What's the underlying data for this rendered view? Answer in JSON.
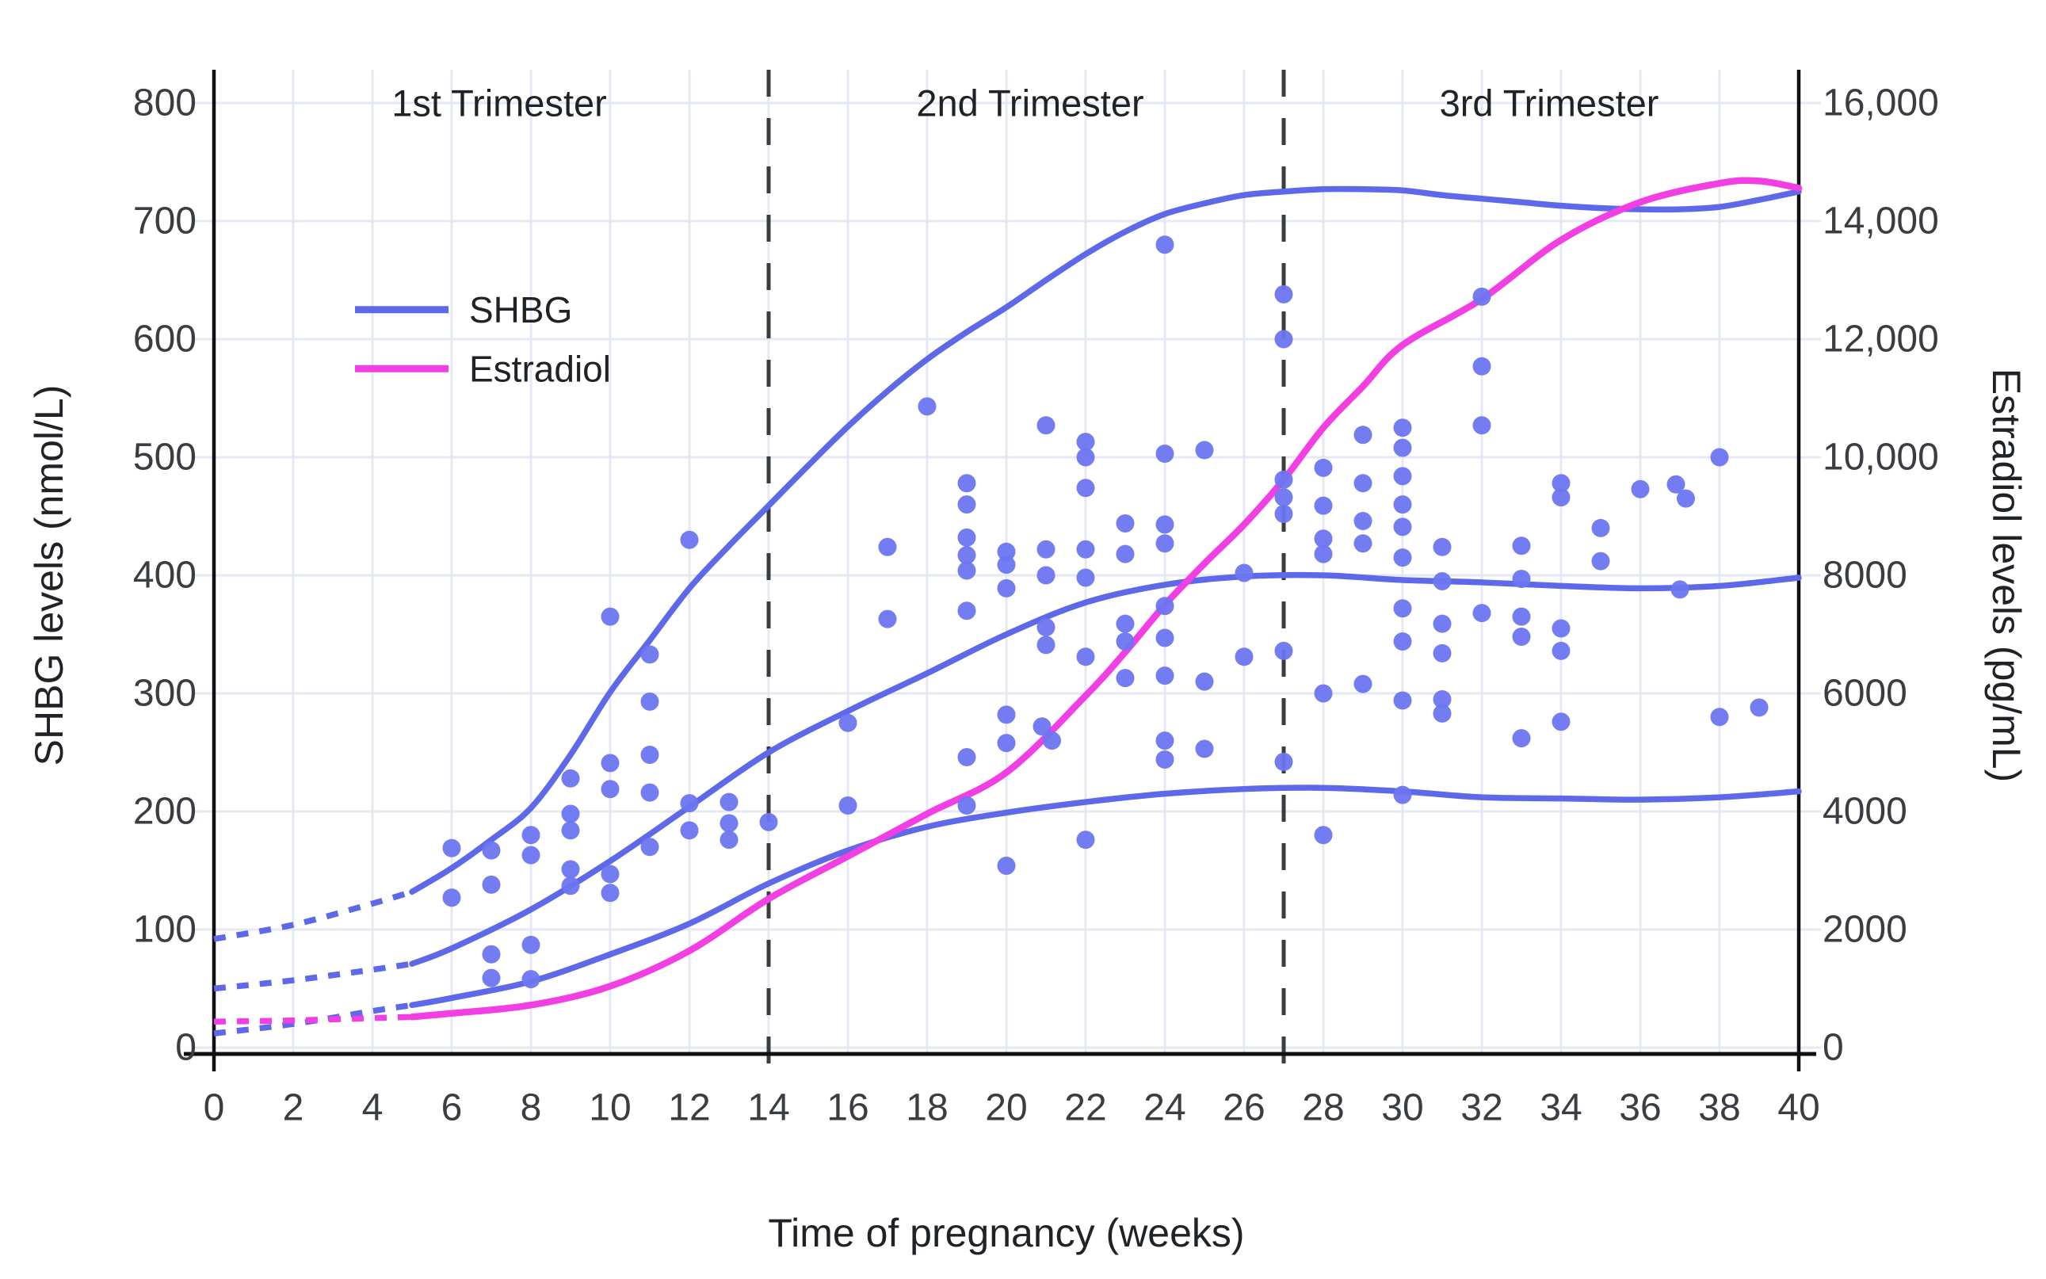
{
  "chart_data": {
    "type": "scatter",
    "title": "",
    "x_axis": {
      "label": "Time of pregnancy (weeks)",
      "range": [
        0,
        40
      ],
      "tick_step": 2,
      "tick_labels": [
        "0",
        "2",
        "4",
        "6",
        "8",
        "10",
        "12",
        "14",
        "16",
        "18",
        "20",
        "22",
        "24",
        "26",
        "28",
        "30",
        "32",
        "34",
        "36",
        "38",
        "40"
      ]
    },
    "y_left_axis": {
      "label": "SHBG levels (nmol/L)",
      "range": [
        0,
        800
      ],
      "tick_step": 100,
      "tick_labels": [
        "0",
        "100",
        "200",
        "300",
        "400",
        "500",
        "600",
        "700",
        "800"
      ]
    },
    "y_right_axis": {
      "label": "Estradiol levels (pg/mL)",
      "range": [
        0,
        16000
      ],
      "per_left_unit": 20,
      "tick_labels": [
        "0",
        "2000",
        "4000",
        "6000",
        "8000",
        "10,000",
        "12,000",
        "14,000",
        "16,000"
      ]
    },
    "trimesters": {
      "boundary_weeks": [
        14,
        27
      ],
      "labels": [
        {
          "text": "1st Trimester",
          "week": 7.2
        },
        {
          "text": "2nd Trimester",
          "week": 20.6
        },
        {
          "text": "3rd Trimester",
          "week": 33.7
        }
      ],
      "label_value": 800
    },
    "legend": [
      {
        "name": "SHBG",
        "color": "#5D69E9"
      },
      {
        "name": "Estradiol",
        "color": "#F13FE4"
      }
    ],
    "series": [
      {
        "name": "shbg-95th-percentile",
        "color": "#5D69E9",
        "dotted": [
          [
            0,
            92
          ],
          [
            2,
            104
          ],
          [
            4,
            122
          ],
          [
            5,
            132
          ]
        ],
        "solid": [
          [
            5,
            132
          ],
          [
            6,
            152
          ],
          [
            7,
            176
          ],
          [
            8,
            203
          ],
          [
            9,
            248
          ],
          [
            10,
            301
          ],
          [
            11,
            345
          ],
          [
            12,
            389
          ],
          [
            13,
            425
          ],
          [
            14,
            459
          ],
          [
            15,
            493
          ],
          [
            16,
            526
          ],
          [
            17,
            556
          ],
          [
            18,
            583
          ],
          [
            19,
            606
          ],
          [
            20,
            627
          ],
          [
            21,
            650
          ],
          [
            22,
            672
          ],
          [
            23,
            691
          ],
          [
            24,
            706
          ],
          [
            25,
            715
          ],
          [
            26,
            722
          ],
          [
            27,
            725
          ],
          [
            28,
            727
          ],
          [
            29,
            727
          ],
          [
            30,
            726
          ],
          [
            31,
            722
          ],
          [
            32,
            719
          ],
          [
            33,
            716
          ],
          [
            34,
            713
          ],
          [
            35,
            711
          ],
          [
            36,
            710
          ],
          [
            37,
            710
          ],
          [
            38,
            712
          ],
          [
            39,
            718
          ],
          [
            40,
            725
          ]
        ]
      },
      {
        "name": "shbg-median",
        "color": "#5D69E9",
        "dotted": [
          [
            0,
            50
          ],
          [
            2,
            57
          ],
          [
            4,
            66
          ],
          [
            5,
            71
          ]
        ],
        "solid": [
          [
            5,
            71
          ],
          [
            6,
            84
          ],
          [
            8,
            117
          ],
          [
            10,
            158
          ],
          [
            12,
            204
          ],
          [
            14,
            250
          ],
          [
            16,
            285
          ],
          [
            18,
            317
          ],
          [
            20,
            350
          ],
          [
            22,
            377
          ],
          [
            24,
            392
          ],
          [
            26,
            399
          ],
          [
            28,
            400
          ],
          [
            30,
            396
          ],
          [
            32,
            394
          ],
          [
            34,
            391
          ],
          [
            36,
            389
          ],
          [
            38,
            391
          ],
          [
            40,
            398
          ]
        ]
      },
      {
        "name": "shbg-5th-percentile",
        "color": "#5D69E9",
        "dotted": [
          [
            0,
            12
          ],
          [
            2,
            20
          ],
          [
            4,
            31
          ],
          [
            5,
            36
          ]
        ],
        "solid": [
          [
            5,
            36
          ],
          [
            6,
            42
          ],
          [
            8,
            56
          ],
          [
            10,
            79
          ],
          [
            12,
            105
          ],
          [
            14,
            139
          ],
          [
            16,
            167
          ],
          [
            18,
            187
          ],
          [
            20,
            199
          ],
          [
            22,
            208
          ],
          [
            24,
            215
          ],
          [
            26,
            219
          ],
          [
            28,
            220
          ],
          [
            30,
            217
          ],
          [
            32,
            212
          ],
          [
            34,
            211
          ],
          [
            36,
            210
          ],
          [
            38,
            212
          ],
          [
            40,
            217
          ]
        ]
      },
      {
        "name": "estradiol",
        "color": "#F13FE4",
        "dotted": [
          [
            0,
            22
          ],
          [
            2,
            23
          ],
          [
            4,
            25
          ],
          [
            5,
            26
          ]
        ],
        "solid": [
          [
            5,
            26
          ],
          [
            6,
            29
          ],
          [
            8,
            36
          ],
          [
            10,
            52
          ],
          [
            12,
            82
          ],
          [
            14,
            126
          ],
          [
            16,
            162
          ],
          [
            18,
            198
          ],
          [
            20,
            233
          ],
          [
            22,
            298
          ],
          [
            23,
            335
          ],
          [
            24,
            375
          ],
          [
            25,
            410
          ],
          [
            26,
            443
          ],
          [
            27,
            481
          ],
          [
            28,
            525
          ],
          [
            29,
            560
          ],
          [
            30,
            595
          ],
          [
            32,
            634
          ],
          [
            34,
            684
          ],
          [
            36,
            716
          ],
          [
            38,
            732
          ],
          [
            39,
            734
          ],
          [
            40,
            728
          ]
        ]
      }
    ],
    "scatter_points_week_value": [
      [
        6,
        169
      ],
      [
        6,
        127
      ],
      [
        7,
        167
      ],
      [
        7,
        138
      ],
      [
        7,
        79
      ],
      [
        7,
        59
      ],
      [
        8,
        180
      ],
      [
        8,
        163
      ],
      [
        8,
        87
      ],
      [
        8,
        58
      ],
      [
        9,
        228
      ],
      [
        9,
        198
      ],
      [
        9,
        184
      ],
      [
        9,
        151
      ],
      [
        9,
        137
      ],
      [
        10,
        365
      ],
      [
        10,
        241
      ],
      [
        10,
        219
      ],
      [
        10,
        147
      ],
      [
        10,
        131
      ],
      [
        11,
        333
      ],
      [
        11,
        293
      ],
      [
        11,
        248
      ],
      [
        11,
        216
      ],
      [
        11,
        170
      ],
      [
        12,
        430
      ],
      [
        12,
        207
      ],
      [
        12,
        184
      ],
      [
        13,
        208
      ],
      [
        13,
        190
      ],
      [
        13,
        176
      ],
      [
        14,
        191
      ],
      [
        16,
        275
      ],
      [
        16,
        205
      ],
      [
        17,
        424
      ],
      [
        17,
        363
      ],
      [
        18,
        543
      ],
      [
        19,
        478
      ],
      [
        19,
        460
      ],
      [
        19,
        432
      ],
      [
        19,
        417
      ],
      [
        19,
        404
      ],
      [
        19,
        370
      ],
      [
        19,
        246
      ],
      [
        19,
        205
      ],
      [
        20,
        420
      ],
      [
        20,
        409
      ],
      [
        20,
        389
      ],
      [
        20,
        282
      ],
      [
        20,
        258
      ],
      [
        20,
        154
      ],
      [
        21,
        527
      ],
      [
        21,
        422
      ],
      [
        21,
        400
      ],
      [
        21,
        356
      ],
      [
        21,
        341
      ],
      [
        20.9,
        272
      ],
      [
        21.15,
        260
      ],
      [
        22,
        513
      ],
      [
        22,
        500
      ],
      [
        22,
        474
      ],
      [
        22,
        422
      ],
      [
        22,
        398
      ],
      [
        22,
        331
      ],
      [
        22,
        176
      ],
      [
        23,
        444
      ],
      [
        23,
        418
      ],
      [
        23,
        359
      ],
      [
        23,
        344
      ],
      [
        23,
        313
      ],
      [
        24,
        680
      ],
      [
        24,
        503
      ],
      [
        24,
        443
      ],
      [
        24,
        427
      ],
      [
        24,
        374
      ],
      [
        24,
        347
      ],
      [
        24,
        315
      ],
      [
        24,
        260
      ],
      [
        24,
        244
      ],
      [
        25,
        506
      ],
      [
        25,
        310
      ],
      [
        25,
        253
      ],
      [
        26,
        402
      ],
      [
        26,
        331
      ],
      [
        27,
        638
      ],
      [
        27,
        600
      ],
      [
        27,
        481
      ],
      [
        27,
        466
      ],
      [
        27,
        452
      ],
      [
        27,
        336
      ],
      [
        27,
        242
      ],
      [
        28,
        491
      ],
      [
        28,
        459
      ],
      [
        28,
        431
      ],
      [
        28,
        418
      ],
      [
        28,
        300
      ],
      [
        28,
        180
      ],
      [
        29,
        519
      ],
      [
        29,
        478
      ],
      [
        29,
        446
      ],
      [
        29,
        427
      ],
      [
        29,
        308
      ],
      [
        30,
        525
      ],
      [
        30,
        508
      ],
      [
        30,
        484
      ],
      [
        30,
        460
      ],
      [
        30,
        441
      ],
      [
        30,
        415
      ],
      [
        30,
        372
      ],
      [
        30,
        344
      ],
      [
        30,
        294
      ],
      [
        30,
        214
      ],
      [
        31,
        424
      ],
      [
        31,
        395
      ],
      [
        31,
        359
      ],
      [
        31,
        334
      ],
      [
        31,
        295
      ],
      [
        31,
        283
      ],
      [
        32,
        636
      ],
      [
        32,
        577
      ],
      [
        32,
        527
      ],
      [
        32,
        368
      ],
      [
        33,
        425
      ],
      [
        33,
        397
      ],
      [
        33,
        365
      ],
      [
        33,
        348
      ],
      [
        33,
        262
      ],
      [
        34,
        478
      ],
      [
        34,
        466
      ],
      [
        34,
        355
      ],
      [
        34,
        336
      ],
      [
        34,
        276
      ],
      [
        35,
        440
      ],
      [
        35,
        412
      ],
      [
        36,
        473
      ],
      [
        36.9,
        477
      ],
      [
        37.15,
        465
      ],
      [
        37,
        388
      ],
      [
        38,
        500
      ],
      [
        38,
        280
      ],
      [
        39,
        288
      ]
    ],
    "colors": {
      "shbg_line": "#5D69E9",
      "shbg_dot": "#6B76F0",
      "estradiol_line": "#F13FE4",
      "gridline": "#E4E9F5",
      "axis": "#101113",
      "trimester_dash": "#3A3D40",
      "tick_text": "#3A3D41",
      "title_text": "#1F2226"
    }
  }
}
